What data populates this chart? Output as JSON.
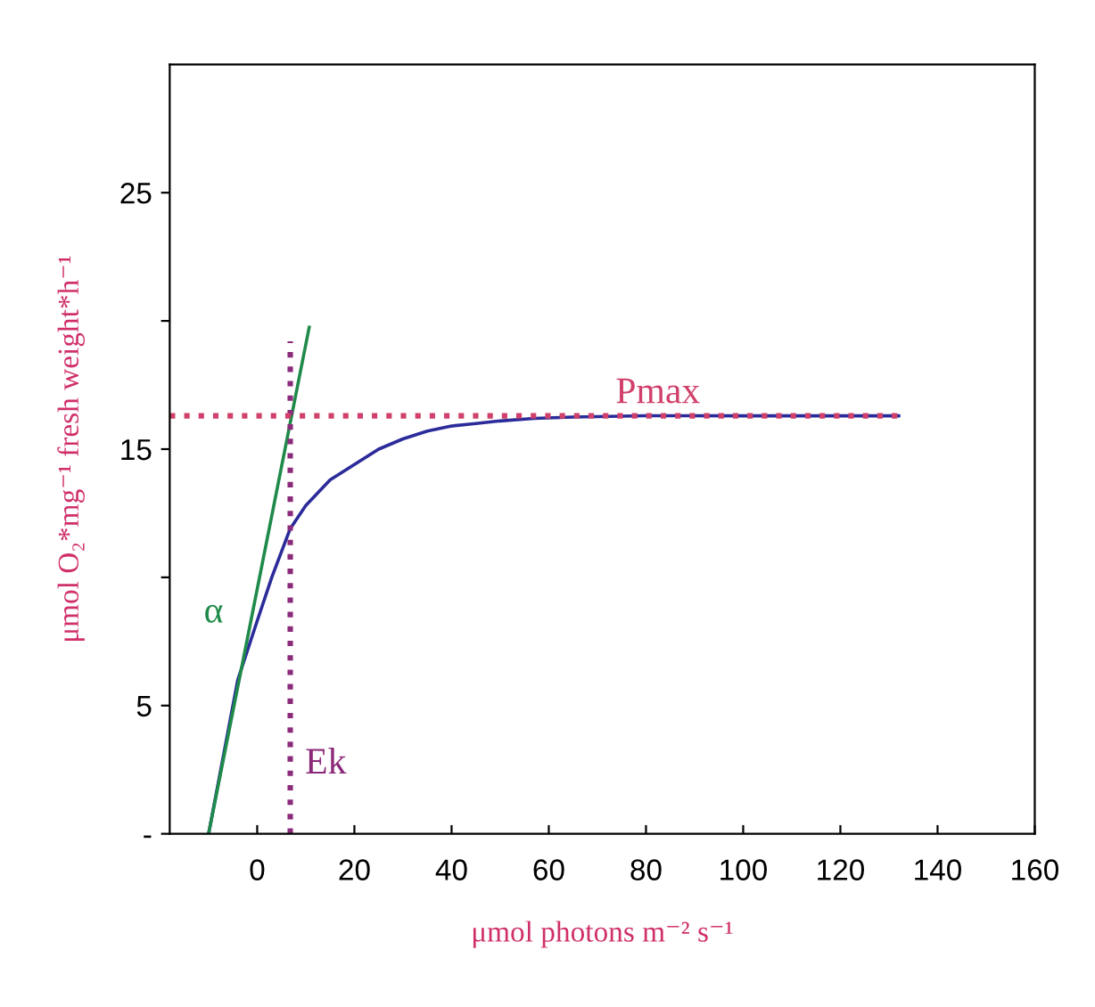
{
  "chart_data": {
    "type": "line",
    "xlabel": "μmol photons m⁻² s⁻¹",
    "ylabel": "μmol O₂*mg⁻¹ fresh weight*h⁻¹",
    "xlim": [
      -18,
      160
    ],
    "xticks": [
      0,
      20,
      40,
      60,
      80,
      100,
      120,
      140,
      160
    ],
    "ylim": [
      0,
      30
    ],
    "yticks": [
      {
        "value": 0,
        "label": "-"
      },
      5,
      {
        "value": 10,
        "label": null
      },
      15,
      {
        "value": 20,
        "label": null
      },
      25
    ],
    "grid": false,
    "legend": false,
    "marker": "none",
    "series": [
      {
        "color": "#2b2b9a",
        "line_style": "solid",
        "x": [
          -10,
          -7,
          -4,
          0,
          3,
          6.8,
          10,
          15,
          20,
          25,
          30,
          35,
          40,
          45,
          50,
          57,
          65,
          80,
          100,
          132
        ],
        "values": [
          0,
          3,
          6,
          8.3,
          10.0,
          11.9,
          12.8,
          13.8,
          14.4,
          15.0,
          15.4,
          15.7,
          15.9,
          16.0,
          16.1,
          16.2,
          16.25,
          16.3,
          16.3,
          16.3
        ]
      },
      {
        "name": "α",
        "color": "#1f8a4a",
        "line_style": "solid",
        "x": [
          -10,
          10.7
        ],
        "values": [
          0,
          19.75
        ]
      },
      {
        "name": "Ek",
        "color": "#8b2a7a",
        "line_style": "dotted",
        "x": [
          6.8,
          6.8
        ],
        "values": [
          0,
          19.2
        ]
      },
      {
        "name": "Pmax",
        "color": "#d0406a",
        "line_style": "dotted",
        "x": [
          -18,
          132
        ],
        "values": [
          16.3,
          16.3
        ]
      }
    ]
  }
}
